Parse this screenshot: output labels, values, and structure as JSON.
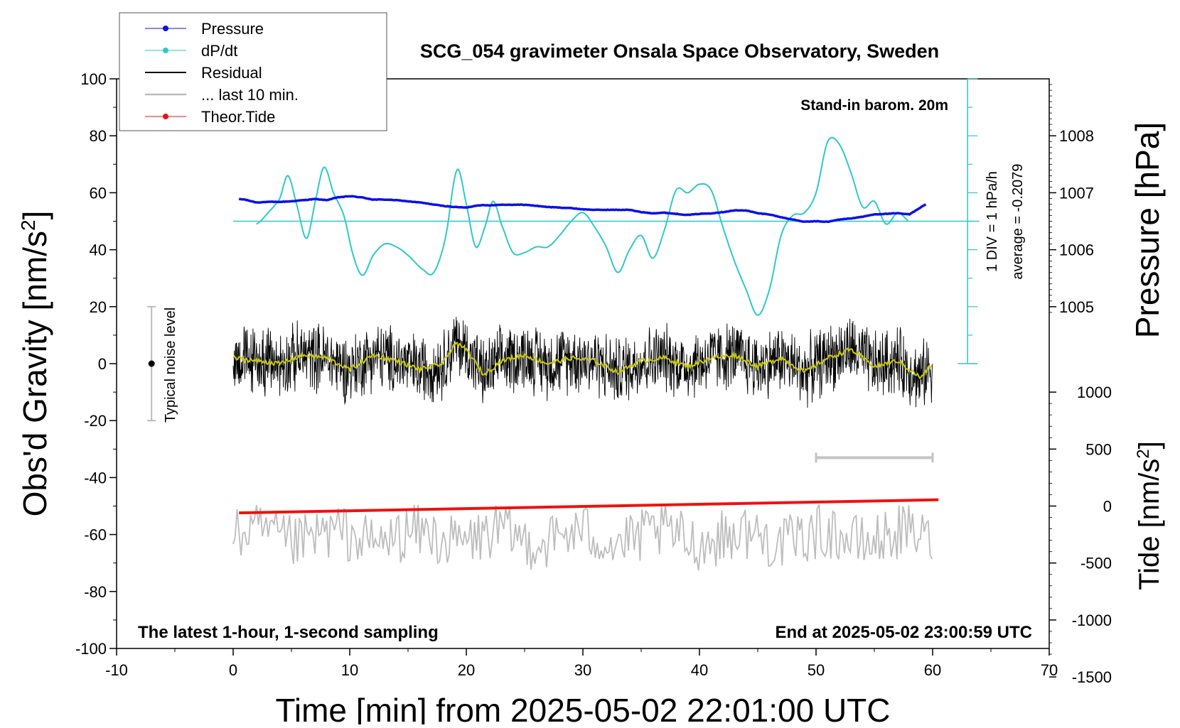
{
  "chart_data": {
    "type": "line",
    "title": "SCG_054 gravimeter Onsala Space Observatory, Sweden",
    "subtitle_right": "Stand-in barom. 20m",
    "footer_left": "The latest 1-hour, 1-second sampling",
    "footer_right": "End at 2025-05-02 23:00:59 UTC",
    "xlabel": "Time [min] from 2025-05-02 22:01:00 UTC",
    "ylabel_left": "Obs'd Gravity [nm/s",
    "ylabel_right_top": "Pressure [hPa]",
    "ylabel_right_bottom": "Tide [nm/s",
    "superscript": "2",
    "xlim": [
      -10,
      70
    ],
    "ylim": [
      -100,
      100
    ],
    "x_ticks": [
      "-10",
      "0",
      "10",
      "20",
      "30",
      "40",
      "50",
      "60",
      "70"
    ],
    "y_ticks": [
      "-100",
      "-80",
      "-60",
      "-40",
      "-20",
      "0",
      "20",
      "40",
      "60",
      "80",
      "100"
    ],
    "pressure_axis": {
      "ticks": [
        "1005",
        "1006",
        "1007",
        "1008"
      ],
      "values": [
        1005,
        1006,
        1007,
        1008
      ],
      "gravity_at_1005": 20,
      "gravity_per_hpa": 20
    },
    "tide_axis": {
      "ticks": [
        "1000",
        "500",
        "0",
        "-500",
        "-1000",
        "-1500"
      ],
      "values": [
        1000,
        500,
        0,
        -500,
        -1000,
        -1500
      ],
      "gravity_at_0": -50,
      "gravity_per_unit": 0.04
    },
    "dpdt_scale": {
      "label": "1 DIV = 1 hPa/h",
      "average_label": "average = -0.2079",
      "zero_level": 50,
      "x": 63
    },
    "noise_indicator": {
      "label": "Typical noise level",
      "x": -7,
      "center": 0,
      "half_range": 20
    },
    "range_bar": {
      "x_start": 50,
      "x_end": 60,
      "y": -33
    },
    "legend": [
      "Pressure",
      "dP/dt",
      "Residual",
      "... last 10 min.",
      "Theor.Tide"
    ],
    "colors": {
      "pressure": "#0a12e6",
      "dpdt": "#2fc8c8",
      "residual": "#000000",
      "last10": "#bdbdbd",
      "tide": "#ee1111",
      "smooth": "#c8c814",
      "range_bar": "#c4c4c4",
      "noise_bar": "#bbbbbb"
    },
    "series": [
      {
        "name": "Pressure",
        "unit": "hPa",
        "x": [
          0.5,
          1,
          2,
          3,
          4,
          5,
          6,
          7,
          8,
          9,
          10,
          11,
          12,
          13,
          14,
          15,
          16,
          17,
          18,
          19,
          20,
          21,
          22,
          23,
          24,
          25,
          26,
          27,
          28,
          29,
          30,
          31,
          32,
          33,
          34,
          35,
          36,
          37,
          38,
          39,
          40,
          41,
          42,
          43,
          44,
          45,
          46,
          47,
          48,
          49,
          50,
          51,
          52,
          53,
          54,
          55,
          56,
          57,
          58,
          59.5
        ],
        "values": [
          1006.89,
          1006.88,
          1006.83,
          1006.84,
          1006.84,
          1006.85,
          1006.87,
          1006.89,
          1006.87,
          1006.92,
          1006.94,
          1006.92,
          1006.88,
          1006.88,
          1006.87,
          1006.85,
          1006.83,
          1006.8,
          1006.77,
          1006.75,
          1006.74,
          1006.78,
          1006.78,
          1006.79,
          1006.79,
          1006.79,
          1006.77,
          1006.75,
          1006.74,
          1006.73,
          1006.71,
          1006.7,
          1006.7,
          1006.7,
          1006.7,
          1006.66,
          1006.64,
          1006.65,
          1006.63,
          1006.61,
          1006.63,
          1006.64,
          1006.66,
          1006.69,
          1006.69,
          1006.64,
          1006.62,
          1006.57,
          1006.53,
          1006.49,
          1006.5,
          1006.49,
          1006.53,
          1006.55,
          1006.58,
          1006.62,
          1006.63,
          1006.64,
          1006.62,
          1006.81
        ]
      },
      {
        "name": "dP/dt",
        "unit": "nm/s2-scale",
        "x": [
          2,
          3,
          4,
          4.7,
          5.5,
          6.3,
          7.1,
          7.8,
          8.6,
          9.5,
          10.3,
          11.1,
          12,
          13,
          14,
          15,
          16.3,
          17.2,
          18.2,
          19.2,
          20,
          20.8,
          21.6,
          22.3,
          23,
          24,
          25,
          26,
          27,
          28,
          29,
          30,
          31,
          32,
          33,
          34,
          35,
          36,
          37,
          38,
          39,
          40,
          41,
          42,
          43,
          44,
          45,
          46,
          47,
          48,
          49,
          50,
          51,
          52,
          53,
          54,
          55,
          56,
          57,
          58
        ],
        "values": [
          49,
          53,
          58,
          66,
          55,
          44,
          58,
          69,
          60,
          52,
          38,
          31,
          38,
          42,
          41,
          38,
          33,
          32,
          44,
          68,
          56,
          41,
          48,
          57,
          49,
          39,
          39,
          41,
          41,
          45,
          50,
          53,
          48,
          41,
          32,
          40,
          45,
          37,
          47,
          61,
          60,
          63,
          61,
          48,
          36,
          26,
          17,
          26,
          45,
          52,
          53,
          60,
          78,
          77,
          67,
          55,
          57,
          49,
          53,
          50
        ]
      },
      {
        "name": "Residual",
        "unit": "nm/s2",
        "x_range": [
          0,
          60
        ],
        "center": 0,
        "amplitude": 20
      },
      {
        "name": "Residual smoothed",
        "unit": "nm/s2",
        "x": [
          0,
          2,
          4,
          6,
          8,
          10,
          12,
          14,
          16,
          18,
          19,
          20,
          21.5,
          23,
          25,
          27,
          29,
          31,
          33,
          35,
          37,
          39,
          41,
          43,
          45,
          47,
          49,
          51,
          53,
          55,
          57,
          59,
          60
        ],
        "values": [
          2,
          1,
          0,
          3,
          2,
          -2,
          3,
          1,
          -2,
          0,
          7,
          5,
          -4,
          1,
          3,
          0,
          2,
          1,
          -3,
          1,
          2,
          -1,
          2,
          3,
          -1,
          2,
          -3,
          2,
          5,
          -1,
          1,
          -5,
          0
        ]
      },
      {
        "name": "... last 10 min.",
        "unit": "nm/s2",
        "x_range": [
          0,
          60
        ],
        "center": -61,
        "amplitude": 13
      },
      {
        "name": "Theor.Tide",
        "unit": "nm/s2",
        "x": [
          0.5,
          60.5
        ],
        "values": [
          -52.4,
          -47.8
        ]
      }
    ]
  }
}
